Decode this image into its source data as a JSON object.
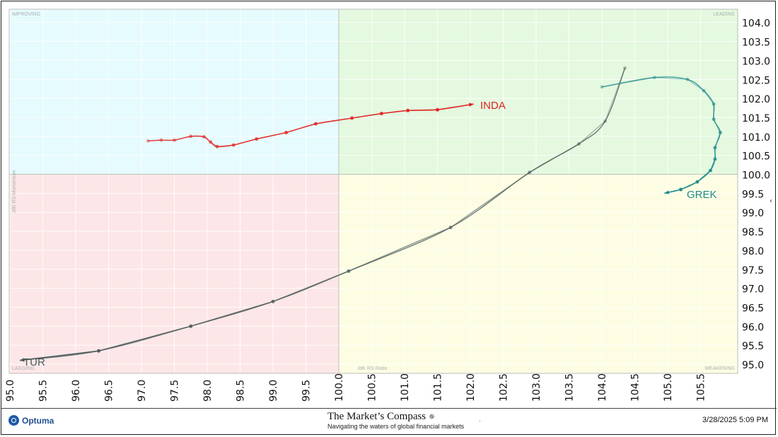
{
  "chart_data": {
    "type": "scatter",
    "title": "",
    "xlabel": "JdK RS-Ratio",
    "ylabel": "JdK RS-Momentum",
    "xlim": [
      95.0,
      106.3
    ],
    "ylim": [
      94.8,
      104.45
    ],
    "center": [
      100.0,
      100.0
    ],
    "x_ticks": [
      "95.0",
      "95.5",
      "96.0",
      "96.5",
      "97.0",
      "97.5",
      "98.0",
      "98.5",
      "99.0",
      "99.5",
      "100.0",
      "100.5",
      "101.0",
      "101.5",
      "102.0",
      "102.5",
      "103.0",
      "103.5",
      "104.0",
      "104.5",
      "105.0",
      "105.5"
    ],
    "y_ticks": [
      "95.0",
      "95.5",
      "96.0",
      "96.5",
      "97.0",
      "97.5",
      "98.0",
      "98.5",
      "99.0",
      "99.5",
      "100.0",
      "100.5",
      "101.0",
      "101.5",
      "102.0",
      "102.5",
      "103.0",
      "103.5",
      "104.0"
    ],
    "quadrants": {
      "top_left": "IMPROVING",
      "top_right": "LEADING",
      "bottom_left": "LAGGING",
      "bottom_right": "WEAKENING"
    },
    "quadrant_colors": {
      "improving": "#e6fbfd",
      "leading": "#e4f9df",
      "lagging": "#fde6e7",
      "weakening": "#fdfde3"
    },
    "grid": true,
    "series": [
      {
        "name": "TUR",
        "color": "#4a5a5a",
        "label_side": "end",
        "points": [
          [
            104.35,
            102.8
          ],
          [
            104.05,
            101.4
          ],
          [
            103.65,
            100.8
          ],
          [
            102.9,
            100.05
          ],
          [
            101.7,
            98.6
          ],
          [
            100.15,
            97.45
          ],
          [
            99.0,
            96.65
          ],
          [
            97.75,
            96.0
          ],
          [
            96.35,
            95.35
          ],
          [
            95.15,
            95.1
          ]
        ]
      },
      {
        "name": "GREK",
        "color": "#1f8a8a",
        "label_side": "end",
        "points": [
          [
            104.0,
            102.3
          ],
          [
            104.8,
            102.55
          ],
          [
            105.3,
            102.5
          ],
          [
            105.55,
            102.2
          ],
          [
            105.7,
            101.85
          ],
          [
            105.7,
            101.45
          ],
          [
            105.8,
            101.1
          ],
          [
            105.72,
            100.7
          ],
          [
            105.72,
            100.4
          ],
          [
            105.65,
            100.1
          ],
          [
            105.45,
            99.8
          ],
          [
            105.2,
            99.6
          ],
          [
            104.95,
            99.5
          ]
        ]
      },
      {
        "name": "INDA",
        "color": "#e02020",
        "label_side": "end",
        "points": [
          [
            97.1,
            100.88
          ],
          [
            97.3,
            100.9
          ],
          [
            97.5,
            100.9
          ],
          [
            97.75,
            101.0
          ],
          [
            97.95,
            100.99
          ],
          [
            98.05,
            100.85
          ],
          [
            98.15,
            100.73
          ],
          [
            98.4,
            100.77
          ],
          [
            98.75,
            100.93
          ],
          [
            99.2,
            101.1
          ],
          [
            99.65,
            101.33
          ],
          [
            100.2,
            101.48
          ],
          [
            100.65,
            101.6
          ],
          [
            101.05,
            101.68
          ],
          [
            101.5,
            101.7
          ],
          [
            102.05,
            101.85
          ]
        ]
      }
    ]
  },
  "footer": {
    "logo_text": "Optuma",
    "brand_title": "The Market’s Compass",
    "brand_compass": "✵",
    "brand_subtitle": "Navigating the waters of global financial markets",
    "timestamp": "3/28/2025 5:09 PM",
    "dot": "·"
  },
  "side_marker": "‹"
}
